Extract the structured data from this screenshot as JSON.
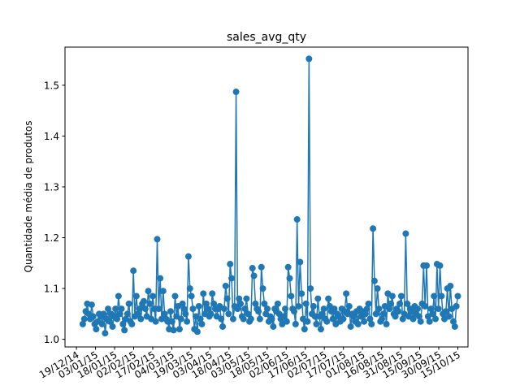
{
  "chart_data": {
    "type": "line",
    "title": "sales_avg_qty",
    "xlabel": "",
    "ylabel": "Quantidade média de produtos",
    "x_tick_labels": [
      "19/12/14",
      "03/01/15",
      "18/01/15",
      "02/02/15",
      "17/02/15",
      "04/03/15",
      "19/03/15",
      "03/04/15",
      "18/04/15",
      "03/05/15",
      "18/05/15",
      "02/06/15",
      "17/06/15",
      "02/07/15",
      "17/07/15",
      "01/08/15",
      "16/08/15",
      "31/08/15",
      "15/09/15",
      "30/09/15",
      "15/10/15"
    ],
    "y_tick_labels": [
      "1.0",
      "1.1",
      "1.2",
      "1.3",
      "1.4",
      "1.5"
    ],
    "xlim": [
      "2014-12-10",
      "2015-10-23"
    ],
    "ylim": [
      0.985,
      1.575
    ],
    "marker": "circle",
    "grid": false,
    "colors": {
      "series": "#1f77b4"
    },
    "series": [
      {
        "x_start": "2014-12-24",
        "x_end": "2015-10-15",
        "values": [
          1.03,
          1.04,
          1.055,
          1.07,
          1.05,
          1.04,
          1.068,
          1.045,
          1.03,
          1.02,
          1.035,
          1.05,
          1.045,
          1.03,
          1.05,
          1.012,
          1.04,
          1.06,
          1.035,
          1.05,
          1.025,
          1.045,
          1.06,
          1.04,
          1.085,
          1.05,
          1.06,
          1.03,
          1.018,
          1.04,
          1.05,
          1.07,
          1.035,
          1.03,
          1.135,
          1.045,
          1.085,
          1.05,
          1.06,
          1.04,
          1.07,
          1.075,
          1.06,
          1.045,
          1.095,
          1.07,
          1.04,
          1.085,
          1.06,
          1.035,
          1.197,
          1.06,
          1.12,
          1.04,
          1.095,
          1.05,
          1.04,
          1.035,
          1.02,
          1.055,
          1.035,
          1.018,
          1.085,
          1.045,
          1.065,
          1.02,
          1.04,
          1.07,
          1.06,
          1.05,
          1.035,
          1.163,
          1.1,
          1.085,
          1.06,
          1.02,
          1.045,
          1.015,
          1.065,
          1.04,
          1.03,
          1.09,
          1.05,
          1.07,
          1.06,
          1.045,
          1.05,
          1.09,
          1.07,
          1.06,
          1.045,
          1.06,
          1.065,
          1.04,
          1.025,
          1.06,
          1.105,
          1.08,
          1.05,
          1.148,
          1.12,
          1.04,
          1.065,
          1.487,
          1.06,
          1.08,
          1.07,
          1.045,
          1.04,
          1.06,
          1.08,
          1.05,
          1.035,
          1.04,
          1.14,
          1.125,
          1.07,
          1.06,
          1.055,
          1.04,
          1.142,
          1.1,
          1.07,
          1.05,
          1.06,
          1.035,
          1.045,
          1.04,
          1.025,
          1.06,
          1.055,
          1.07,
          1.05,
          1.04,
          1.03,
          1.045,
          1.06,
          1.035,
          1.142,
          1.12,
          1.085,
          1.06,
          1.055,
          1.03,
          1.236,
          1.065,
          1.152,
          1.09,
          1.04,
          1.02,
          1.07,
          1.035,
          1.552,
          1.1,
          1.05,
          1.065,
          1.045,
          1.03,
          1.08,
          1.045,
          1.02,
          1.05,
          1.06,
          1.04,
          1.035,
          1.08,
          1.065,
          1.055,
          1.04,
          1.06,
          1.03,
          1.05,
          1.045,
          1.035,
          1.06,
          1.04,
          1.055,
          1.09,
          1.05,
          1.065,
          1.025,
          1.05,
          1.045,
          1.035,
          1.055,
          1.03,
          1.06,
          1.045,
          1.055,
          1.035,
          1.05,
          1.06,
          1.07,
          1.04,
          1.03,
          1.218,
          1.115,
          1.05,
          1.1,
          1.06,
          1.035,
          1.04,
          1.05,
          1.065,
          1.03,
          1.09,
          1.06,
          1.07,
          1.085,
          1.05,
          1.045,
          1.06,
          1.055,
          1.07,
          1.085,
          1.04,
          1.05,
          1.208,
          1.07,
          1.045,
          1.06,
          1.055,
          1.04,
          1.065,
          1.05,
          1.06,
          1.045,
          1.035,
          1.07,
          1.145,
          1.065,
          1.145,
          1.045,
          1.035,
          1.06,
          1.05,
          1.085,
          1.04,
          1.148,
          1.06,
          1.145,
          1.085,
          1.05,
          1.04,
          1.055,
          1.1,
          1.045,
          1.105,
          1.06,
          1.035,
          1.025,
          1.065,
          1.085
        ]
      }
    ]
  }
}
